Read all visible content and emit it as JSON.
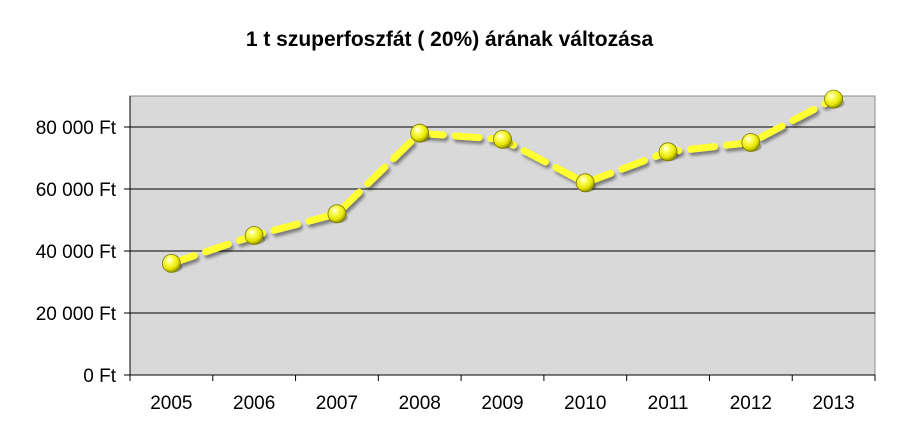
{
  "chart_data": {
    "type": "line",
    "title": "1 t szuperfoszfát ( 20%) árának változása",
    "xlabel": "",
    "ylabel": "",
    "categories": [
      "2005",
      "2006",
      "2007",
      "2008",
      "2009",
      "2010",
      "2011",
      "2012",
      "2013"
    ],
    "series": [
      {
        "values": [
          36000,
          45000,
          52000,
          78000,
          76000,
          62000,
          72000,
          75000,
          89000
        ],
        "color": "#ffff33"
      }
    ],
    "ylim": [
      0,
      90000
    ],
    "yticks": [
      0,
      20000,
      40000,
      60000,
      80000
    ],
    "ytick_labels": [
      "0 Ft",
      "20 000 Ft",
      "40 000 Ft",
      "60 000 Ft",
      "80 000 Ft"
    ],
    "grid": true,
    "plot_background": "#d9d9d9",
    "line_style": "dashed",
    "marker": "sphere"
  }
}
